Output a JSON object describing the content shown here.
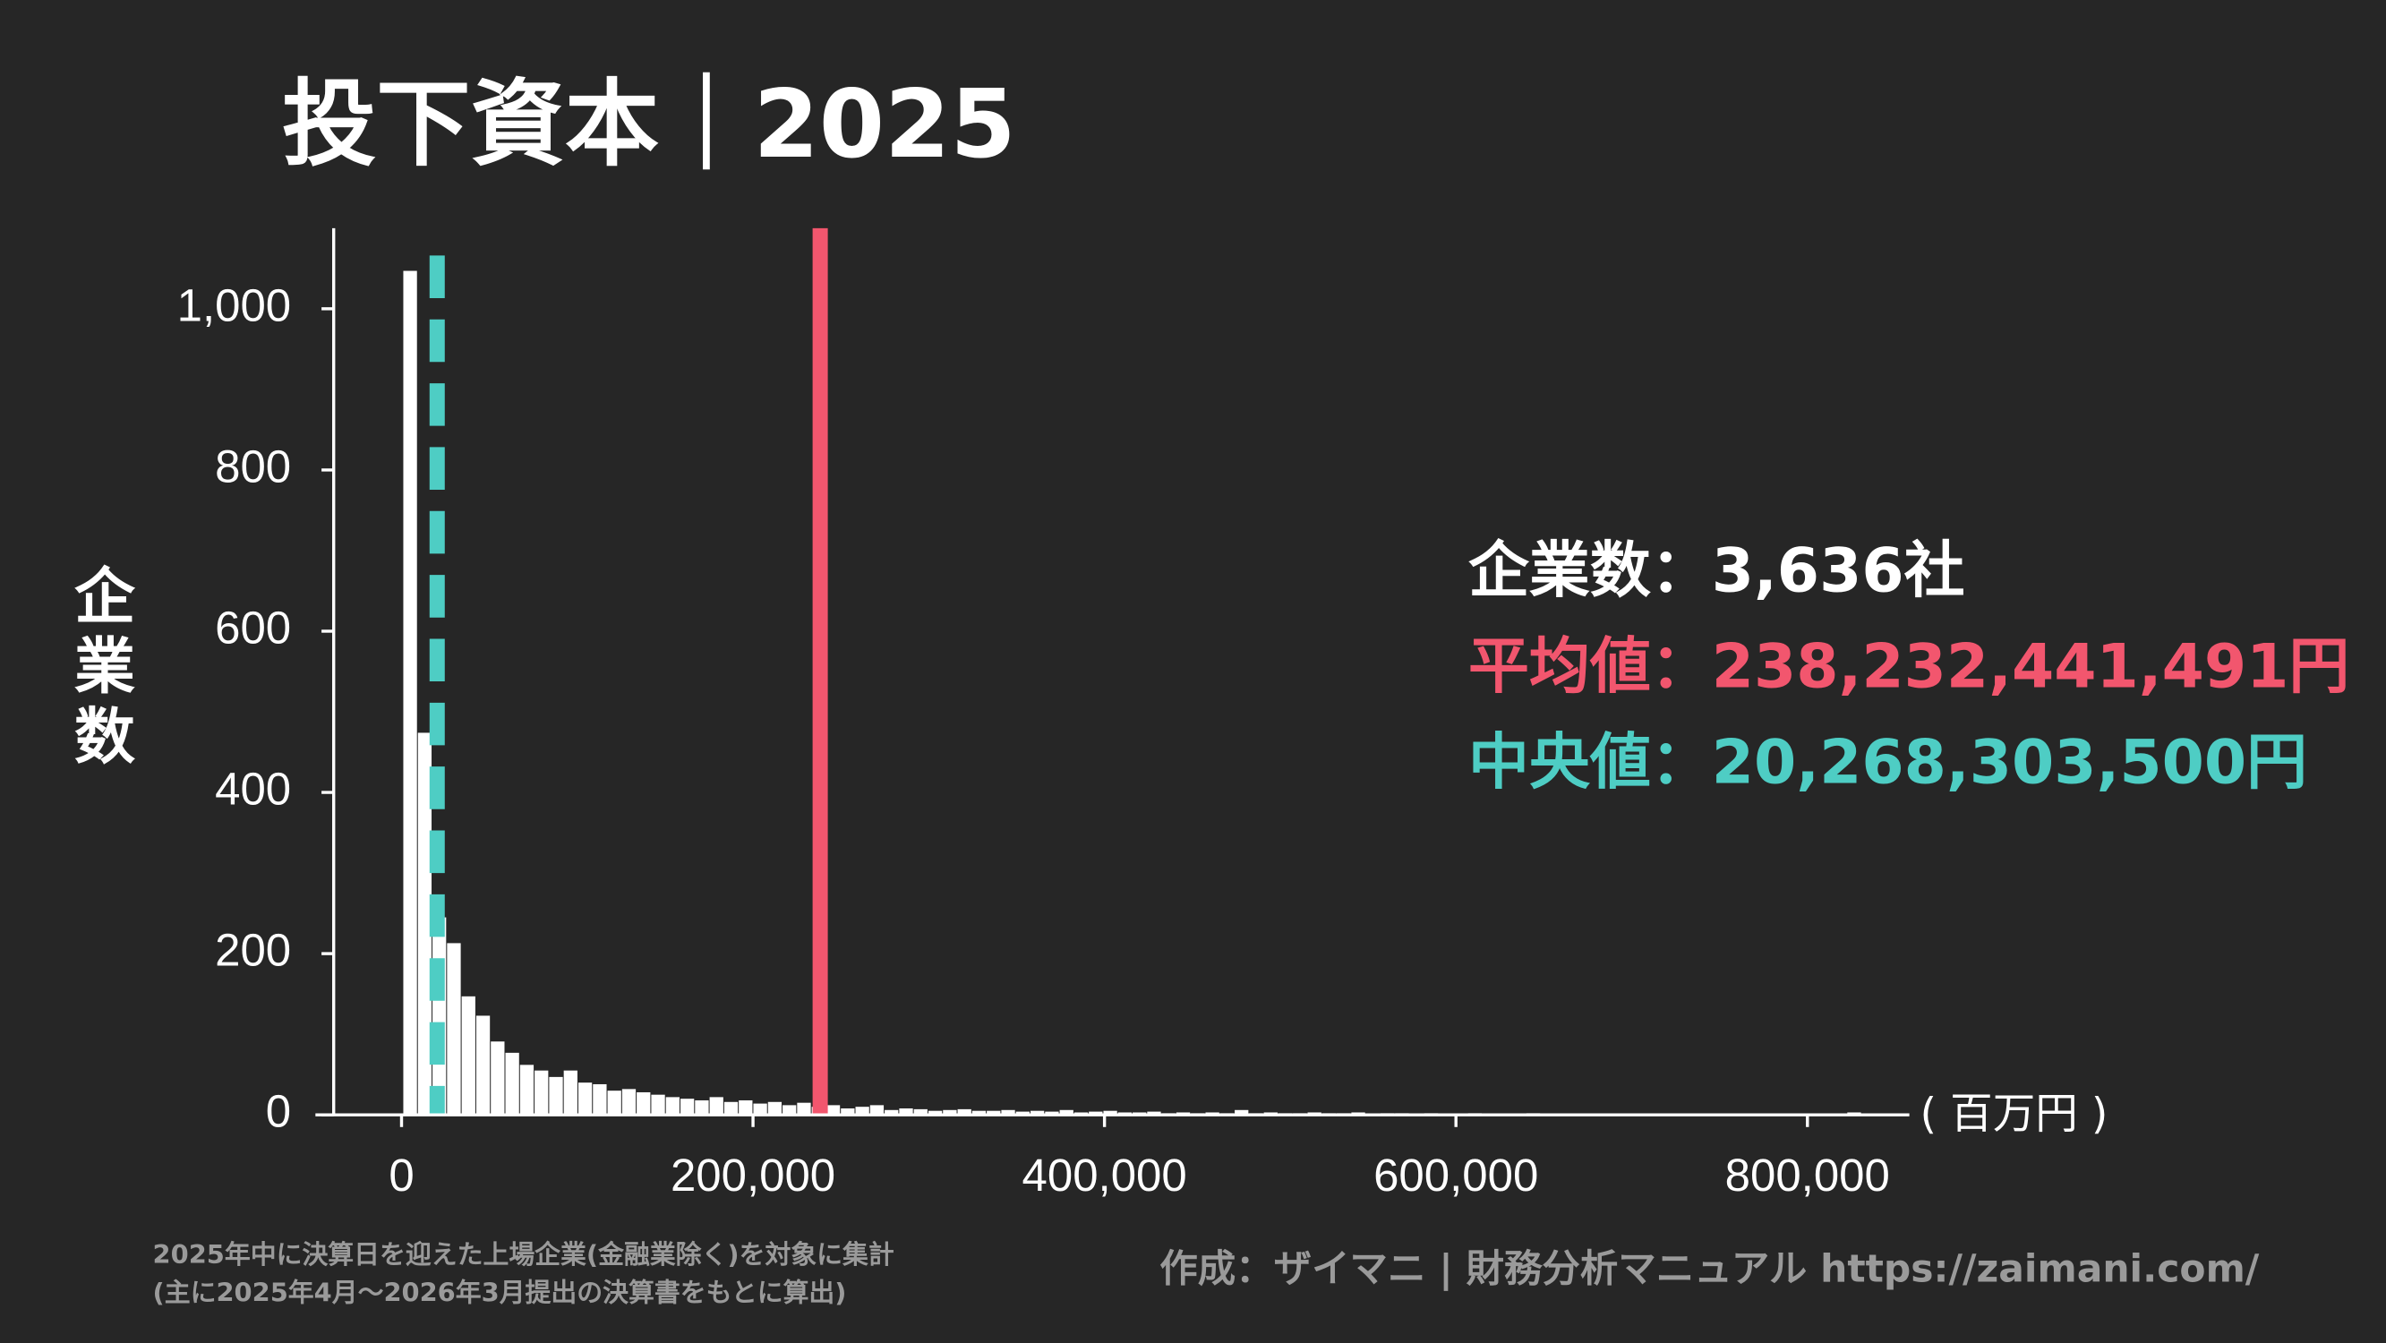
{
  "chart_data": {
    "type": "histogram",
    "title": "投下資本｜2025",
    "y_label": "企業数",
    "x_unit": "( 百万円 )",
    "bar_color": "#ffffff",
    "bins": [
      1000,
      9300,
      17600,
      25900,
      34200,
      42500,
      50800,
      59100,
      67400,
      75700,
      84000,
      92300,
      100600,
      108900,
      117200,
      125500,
      133800,
      142100,
      150400,
      158700,
      167000,
      175300,
      183600,
      191900,
      200200,
      208500,
      216800,
      225100,
      233400,
      241700,
      250000,
      258300,
      266600,
      274900,
      283200,
      291500,
      299800,
      308100,
      316400,
      324700,
      333000,
      341300,
      349600,
      357900,
      366200,
      374500,
      382800,
      391100,
      399400,
      407700,
      416000,
      424300,
      432600,
      440900,
      449200,
      457500,
      465800,
      474100,
      482400,
      490700,
      499000,
      507300,
      515600,
      523900,
      532200,
      540500,
      548800,
      557100,
      565400,
      573700,
      582000,
      590300,
      598600,
      606900,
      615200,
      623500,
      631800,
      640100,
      648400,
      656700,
      665000,
      673300,
      681600,
      689900,
      698200,
      706500,
      714800,
      723100,
      731400,
      739700,
      748000,
      756300,
      764600,
      772900,
      781200,
      789500,
      797800,
      806100,
      814400,
      822700,
      831000
    ],
    "counts": [
      1047,
      474,
      245,
      213,
      147,
      123,
      91,
      77,
      62,
      55,
      47,
      55,
      40,
      38,
      30,
      32,
      28,
      25,
      22,
      20,
      18,
      22,
      16,
      18,
      14,
      16,
      12,
      15,
      10,
      12,
      8,
      10,
      12,
      6,
      8,
      7,
      5,
      6,
      7,
      5,
      5,
      6,
      4,
      5,
      4,
      6,
      3,
      4,
      5,
      3,
      3,
      4,
      2,
      3,
      2,
      3,
      2,
      6,
      2,
      3,
      2,
      2,
      3,
      2,
      2,
      3,
      1,
      2,
      2,
      1,
      2,
      1,
      1,
      2,
      1,
      1,
      1,
      2,
      1,
      1,
      1,
      0,
      1,
      1,
      0,
      1,
      0,
      1,
      0,
      1,
      0,
      1,
      0,
      0,
      1,
      0,
      0,
      0,
      1,
      3
    ],
    "xlim": [
      -49000,
      858000
    ],
    "ylim": [
      0,
      1100
    ],
    "xticks": [
      0,
      {
        "value": 200000,
        "label": "200,000"
      },
      {
        "value": 400000,
        "label": "400,000"
      },
      {
        "value": 600000,
        "label": "600,000"
      },
      {
        "value": 800000,
        "label": "800,000"
      }
    ],
    "yticks": [
      0,
      200,
      400,
      600,
      800,
      {
        "value": 1000,
        "label": "1,000"
      }
    ],
    "vlines": [
      {
        "value": 238232.441491,
        "color": "#f2566e",
        "style": "solid"
      },
      {
        "value": 20268.3035,
        "color": "#4ecdc4",
        "style": "dashed"
      }
    ],
    "stats": [
      {
        "text": "企業数：3,636社",
        "color": "#ffffff"
      },
      {
        "text": "平均値：238,232,441,491円",
        "color": "#f2566e"
      },
      {
        "text": "中央値：20,268,303,500円",
        "color": "#4ecdc4"
      }
    ],
    "notes": [
      "2025年中に決算日を迎えた上場企業(金融業除く)を対象に集計",
      "(主に2025年4月〜2026年3月提出の決算書をもとに算出)"
    ],
    "credit": "作成：ザイマニ | 財務分析マニュアル https://zaimani.com/"
  }
}
